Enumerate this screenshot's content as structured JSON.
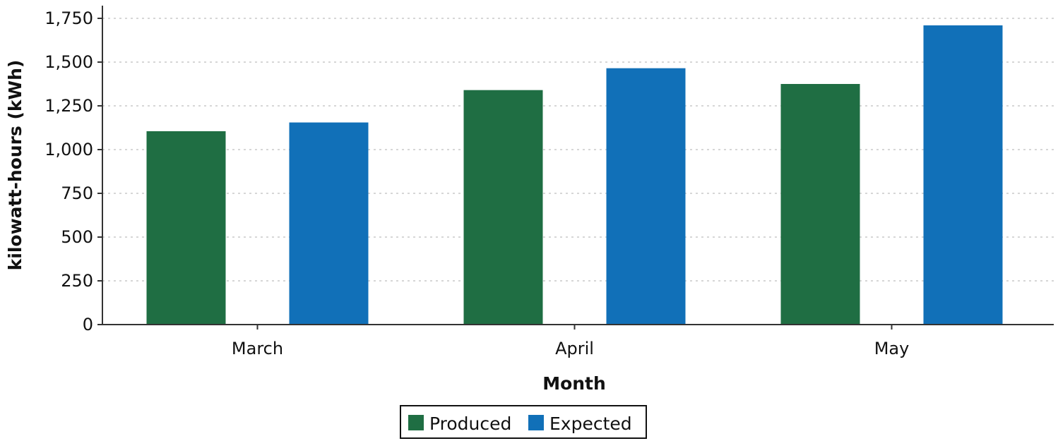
{
  "chart_data": {
    "type": "bar",
    "categories": [
      "March",
      "April",
      "May"
    ],
    "series": [
      {
        "name": "Produced",
        "color": "#1f6e43",
        "values": [
          1105,
          1340,
          1375
        ]
      },
      {
        "name": "Expected",
        "color": "#1170b8",
        "values": [
          1155,
          1465,
          1710
        ]
      }
    ],
    "title": "",
    "xlabel": "Month",
    "ylabel": "kilowatt-hours (kWh)",
    "ylim": [
      0,
      1750
    ],
    "yticks": [
      0,
      250,
      500,
      750,
      1000,
      1250,
      1500,
      1750
    ],
    "ytick_labels": [
      "0",
      "250",
      "500",
      "750",
      "1,000",
      "1,250",
      "1,500",
      "1,750"
    ],
    "grid": true,
    "legend_position": "bottom-center"
  }
}
